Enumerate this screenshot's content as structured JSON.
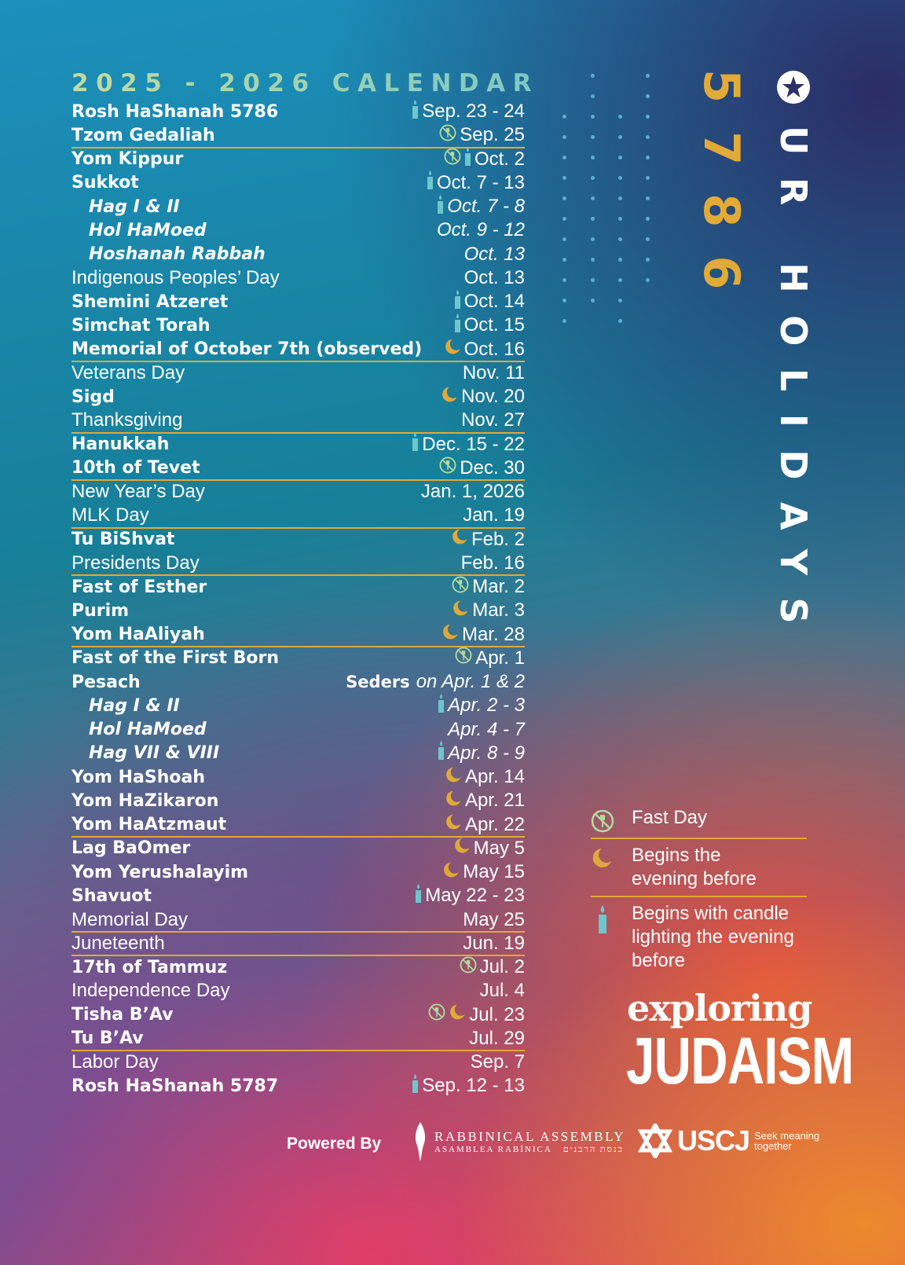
{
  "title": "2025 - 2026 CALENDAR",
  "year": "5786",
  "heading": "UR HOLIDAYS",
  "heading_first_letter": "O",
  "colors": {
    "gold": "#e3a835",
    "candle": "#6cc6cc",
    "fast": "#b5d99c",
    "moon": "#e0a93a"
  },
  "rows": [
    {
      "name": "Rosh HaShanah 5786",
      "style": "bold",
      "icons": [
        "candle"
      ],
      "date": "Sep. 23 - 24"
    },
    {
      "name": "Tzom Gedaliah",
      "style": "bold",
      "icons": [
        "fast"
      ],
      "date": "Sep. 25",
      "sep": true
    },
    {
      "name": "Yom Kippur",
      "style": "bold",
      "icons": [
        "fast",
        "candle"
      ],
      "date": "Oct. 2"
    },
    {
      "name": "Sukkot",
      "style": "bold",
      "icons": [
        "candle"
      ],
      "date": "Oct. 7 - 13"
    },
    {
      "name": "Hag I & II",
      "style": "sub",
      "icons": [
        "candle"
      ],
      "date": "Oct. 7 - 8"
    },
    {
      "name": "Hol HaMoed",
      "style": "sub",
      "icons": [],
      "date": "Oct. 9 - 12"
    },
    {
      "name": "Hoshanah Rabbah",
      "style": "sub",
      "icons": [],
      "date": "Oct. 13"
    },
    {
      "name": "Indigenous Peoples’ Day",
      "style": "light",
      "icons": [],
      "date": "Oct. 13"
    },
    {
      "name": "Shemini Atzeret",
      "style": "bold",
      "icons": [
        "candle"
      ],
      "date": "Oct. 14"
    },
    {
      "name": "Simchat Torah",
      "style": "bold",
      "icons": [
        "candle"
      ],
      "date": "Oct. 15"
    },
    {
      "name": "Memorial of October 7th (observed)",
      "style": "bold",
      "icons": [
        "moon"
      ],
      "date": "Oct. 16",
      "sep": true
    },
    {
      "name": "Veterans Day",
      "style": "light",
      "icons": [],
      "date": "Nov. 11"
    },
    {
      "name": "Sigd",
      "style": "bold",
      "icons": [
        "moon"
      ],
      "date": "Nov. 20"
    },
    {
      "name": "Thanksgiving",
      "style": "light",
      "icons": [],
      "date": "Nov. 27",
      "sep": true
    },
    {
      "name": "Hanukkah",
      "style": "bold",
      "icons": [
        "candle"
      ],
      "date": "Dec. 15 - 22"
    },
    {
      "name": "10th of Tevet",
      "style": "bold",
      "icons": [
        "fast"
      ],
      "date": "Dec. 30",
      "sep": true
    },
    {
      "name": "New Year’s Day",
      "style": "light",
      "icons": [],
      "date": "Jan. 1, 2026"
    },
    {
      "name": "MLK Day",
      "style": "light",
      "icons": [],
      "date": "Jan. 19",
      "sep": true
    },
    {
      "name": "Tu BiShvat",
      "style": "bold",
      "icons": [
        "moon"
      ],
      "date": "Feb. 2"
    },
    {
      "name": "Presidents Day",
      "style": "light",
      "icons": [],
      "date": "Feb. 16",
      "sep": true
    },
    {
      "name": "Fast of Esther",
      "style": "bold",
      "icons": [
        "fast"
      ],
      "date": "Mar. 2"
    },
    {
      "name": "Purim",
      "style": "bold",
      "icons": [
        "moon"
      ],
      "date": "Mar. 3"
    },
    {
      "name": "Yom HaAliyah",
      "style": "bold",
      "icons": [
        "moon"
      ],
      "date": "Mar. 28",
      "sep": true
    },
    {
      "name": "Fast of the First Born",
      "style": "bold",
      "icons": [
        "fast"
      ],
      "date": "Apr. 1"
    },
    {
      "name": "Pesach",
      "style": "bold",
      "icons": [],
      "date_prefix": "Seders",
      "date": "on Apr. 1 & 2"
    },
    {
      "name": "Hag I & II",
      "style": "sub",
      "icons": [
        "candle"
      ],
      "date": "Apr. 2 - 3"
    },
    {
      "name": "Hol HaMoed",
      "style": "sub",
      "icons": [],
      "date": "Apr. 4 - 7"
    },
    {
      "name": "Hag VII & VIII",
      "style": "sub",
      "icons": [
        "candle"
      ],
      "date": "Apr. 8 - 9"
    },
    {
      "name": "Yom HaShoah",
      "style": "bold",
      "icons": [
        "moon"
      ],
      "date": "Apr. 14"
    },
    {
      "name": "Yom HaZikaron",
      "style": "bold",
      "icons": [
        "moon"
      ],
      "date": "Apr. 21"
    },
    {
      "name": "Yom HaAtzmaut",
      "style": "bold",
      "icons": [
        "moon"
      ],
      "date": "Apr. 22",
      "sep": true
    },
    {
      "name": "Lag BaOmer",
      "style": "bold",
      "icons": [
        "moon"
      ],
      "date": "May 5"
    },
    {
      "name": "Yom Yerushalayim",
      "style": "bold",
      "icons": [
        "moon"
      ],
      "date": "May 15"
    },
    {
      "name": "Shavuot",
      "style": "bold",
      "icons": [
        "candle"
      ],
      "date": "May 22 - 23"
    },
    {
      "name": "Memorial Day",
      "style": "light",
      "icons": [],
      "date": "May 25",
      "sep": true
    },
    {
      "name": "Juneteenth",
      "style": "light",
      "icons": [],
      "date": "Jun. 19",
      "sep": true
    },
    {
      "name": "17th of Tammuz",
      "style": "bold",
      "icons": [
        "fast"
      ],
      "date": "Jul. 2"
    },
    {
      "name": "Independence Day",
      "style": "light",
      "icons": [],
      "date": "Jul. 4"
    },
    {
      "name": "Tisha B’Av",
      "style": "bold",
      "icons": [
        "fast",
        "moon"
      ],
      "date": "Jul. 23"
    },
    {
      "name": "Tu B’Av",
      "style": "bold",
      "icons": [],
      "date": "Jul. 29",
      "sep": true
    },
    {
      "name": "Labor Day",
      "style": "light",
      "icons": [],
      "date": "Sep. 7"
    },
    {
      "name": "Rosh HaShanah 5787",
      "style": "bold",
      "icons": [
        "candle"
      ],
      "date": "Sep. 12 - 13"
    }
  ],
  "legend": {
    "fast": "Fast Day",
    "moon_1": "Begins the",
    "moon_2": "evening before",
    "candle_1": " Begins with candle",
    "candle_2": "lighting the evening",
    "candle_3": "before"
  },
  "logo": {
    "line1": "exploring",
    "line2": "JUDAISM"
  },
  "footer": {
    "powered_by": "Powered By",
    "ra_1": "RABBINICAL ASSEMBLY",
    "ra_2a": "ASAMBLEA RABÍNICA",
    "ra_2b": "כנסת הרבנים",
    "uscj": "USCJ",
    "uscj_tag_1": "Seek meaning",
    "uscj_tag_2": "together"
  }
}
